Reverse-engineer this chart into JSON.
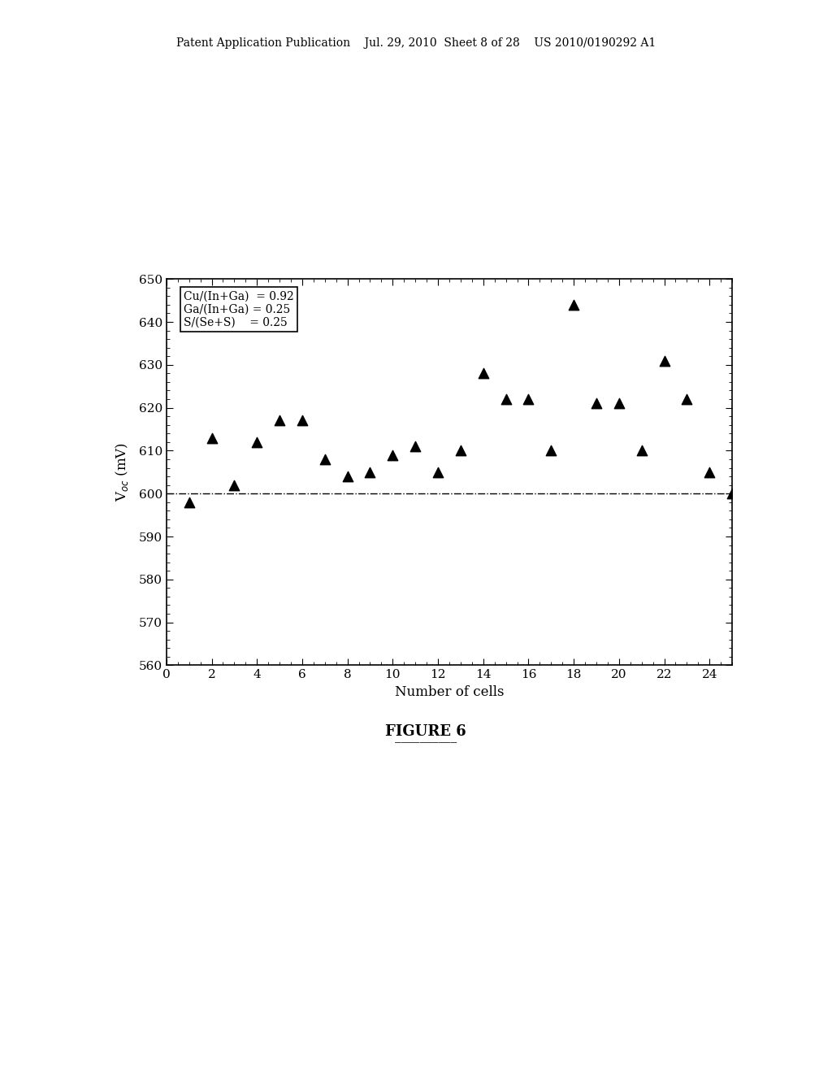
{
  "x_values": [
    1,
    2,
    3,
    4,
    5,
    6,
    7,
    8,
    9,
    10,
    11,
    12,
    13,
    14,
    15,
    16,
    17,
    18,
    19,
    20,
    21,
    22,
    23,
    24,
    25
  ],
  "y_values": [
    598,
    613,
    602,
    612,
    617,
    617,
    608,
    604,
    605,
    609,
    611,
    605,
    610,
    628,
    622,
    622,
    610,
    644,
    621,
    621,
    610,
    631,
    622,
    605,
    600
  ],
  "hline_y": 600,
  "xlim": [
    0,
    25
  ],
  "ylim": [
    560,
    650
  ],
  "xticks": [
    0,
    2,
    4,
    6,
    8,
    10,
    12,
    14,
    16,
    18,
    20,
    22,
    24
  ],
  "yticks": [
    560,
    570,
    580,
    590,
    600,
    610,
    620,
    630,
    640,
    650
  ],
  "xlabel": "Number of cells",
  "ylabel": "V$_{oc}$ (mV)",
  "legend_lines": [
    "Cu/(In+Ga)  = 0.92",
    "Ga/(In+Ga) = 0.25",
    "S/(Se+S)    = 0.25"
  ],
  "title": "FIGURE 6",
  "marker_color": "black",
  "hline_color": "black",
  "hline_style": "-.",
  "background_color": "white",
  "header_text": "Patent Application Publication    Jul. 29, 2010  Sheet 8 of 28    US 2010/0190292 A1"
}
